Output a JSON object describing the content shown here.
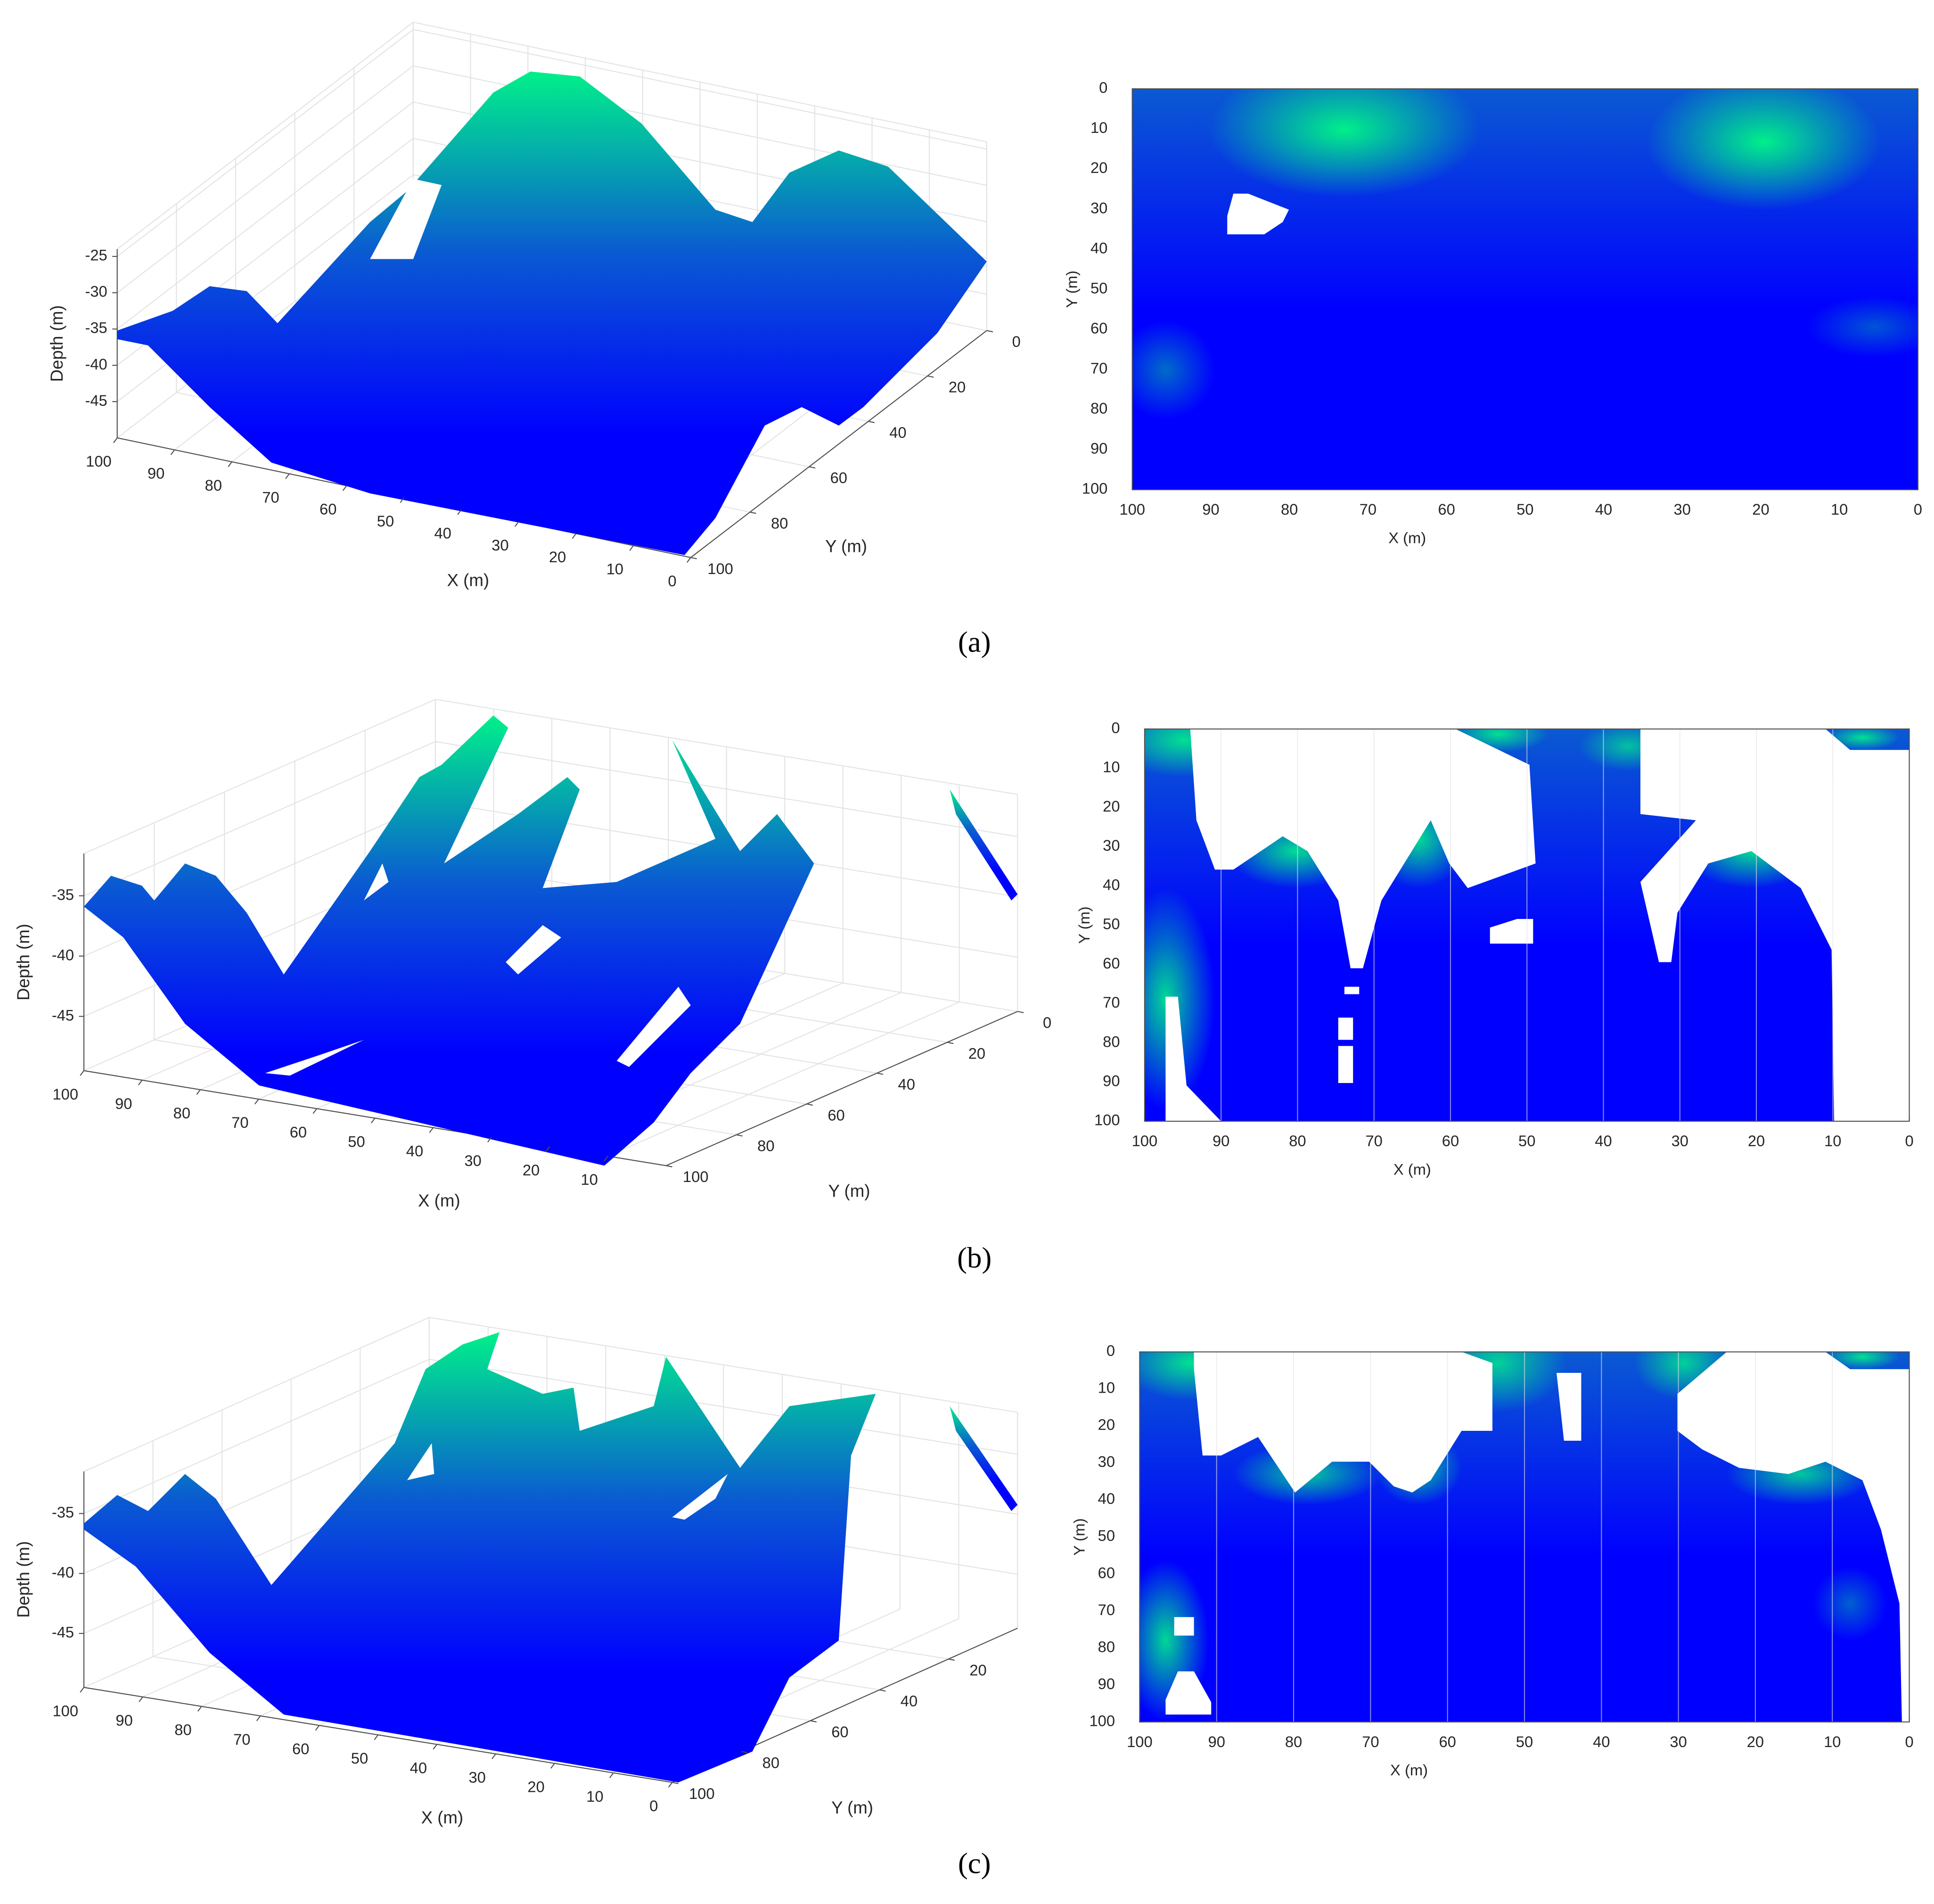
{
  "captions": [
    "(a)",
    "(b)",
    "(c)"
  ],
  "chart_data": [
    {
      "type": "surface",
      "xlabel": "X (m)",
      "ylabel": "Y (m)",
      "zlabel": "Depth (m)",
      "xlim": [
        0,
        100
      ],
      "ylim": [
        0,
        100
      ],
      "zlim": [
        -50,
        -24
      ],
      "xticks": [
        0,
        10,
        20,
        30,
        40,
        50,
        60,
        70,
        80,
        90,
        100
      ],
      "yticks": [
        0,
        20,
        40,
        60,
        80,
        100
      ],
      "zticks": [
        -45,
        -40,
        -35,
        -30,
        -25
      ],
      "grid": true,
      "colormap": [
        "#0000ff",
        "#0a5ad2",
        "#00f08a"
      ]
    },
    {
      "type": "heatmap",
      "xlabel": "X (m)",
      "ylabel": "Y (m)",
      "xlim": [
        100,
        0
      ],
      "ylim": [
        0,
        100
      ],
      "xticks": [
        100,
        90,
        80,
        70,
        60,
        50,
        40,
        30,
        20,
        10,
        0
      ],
      "yticks": [
        0,
        10,
        20,
        30,
        40,
        50,
        60,
        70,
        80,
        90,
        100
      ],
      "grid": true,
      "colormap": [
        "#0000ff",
        "#0a5ad2",
        "#00f08a"
      ]
    },
    {
      "type": "surface",
      "xlabel": "X (m)",
      "ylabel": "Y (m)",
      "zlabel": "Depth (m)",
      "xlim": [
        0,
        100
      ],
      "ylim": [
        0,
        100
      ],
      "zlim": [
        -49.5,
        -31.5
      ],
      "xticks": [
        10,
        20,
        30,
        40,
        50,
        60,
        70,
        80,
        90,
        100
      ],
      "yticks": [
        0,
        20,
        40,
        60,
        80,
        100
      ],
      "zticks": [
        -45,
        -40,
        -35
      ],
      "grid": true,
      "colormap": [
        "#0000ff",
        "#0a5ad2",
        "#00f08a"
      ]
    },
    {
      "type": "heatmap",
      "xlabel": "X (m)",
      "ylabel": "Y (m)",
      "xlim": [
        100,
        0
      ],
      "ylim": [
        0,
        100
      ],
      "xticks": [
        100,
        90,
        80,
        70,
        60,
        50,
        40,
        30,
        20,
        10,
        0
      ],
      "yticks": [
        0,
        10,
        20,
        30,
        40,
        50,
        60,
        70,
        80,
        90,
        100
      ],
      "grid": true,
      "colormap": [
        "#0000ff",
        "#0a5ad2",
        "#00f08a"
      ]
    },
    {
      "type": "surface",
      "xlabel": "X (m)",
      "ylabel": "Y (m)",
      "zlabel": "Depth (m)",
      "xlim": [
        0,
        100
      ],
      "ylim": [
        0,
        100
      ],
      "zlim": [
        -49.5,
        -31.5
      ],
      "xticks": [
        0,
        10,
        20,
        30,
        40,
        50,
        60,
        70,
        80,
        90,
        100
      ],
      "yticks": [
        20,
        40,
        60,
        80,
        100
      ],
      "zticks": [
        -45,
        -40,
        -35
      ],
      "grid": true,
      "colormap": [
        "#0000ff",
        "#0a5ad2",
        "#00f08a"
      ]
    },
    {
      "type": "heatmap",
      "xlabel": "X (m)",
      "ylabel": "Y (m)",
      "xlim": [
        100,
        0
      ],
      "ylim": [
        0,
        100
      ],
      "xticks": [
        100,
        90,
        80,
        70,
        60,
        50,
        40,
        30,
        20,
        10,
        0
      ],
      "yticks": [
        0,
        10,
        20,
        30,
        40,
        50,
        60,
        70,
        80,
        90,
        100
      ],
      "grid": true,
      "colormap": [
        "#0000ff",
        "#0a5ad2",
        "#00f08a"
      ]
    }
  ]
}
